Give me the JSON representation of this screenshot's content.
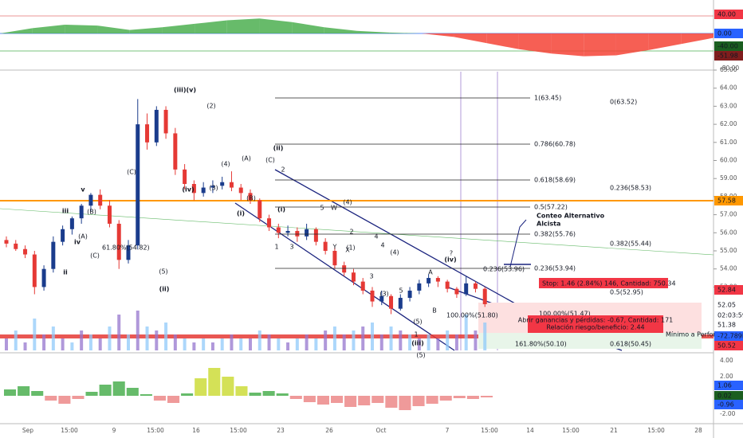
{
  "osc_pane": {
    "tags": [
      "40.00",
      "0.00",
      "-40.00",
      "-51.98"
    ],
    "axis": [
      "-80.00"
    ],
    "values": [
      0,
      12,
      20,
      18,
      8,
      14,
      22,
      30,
      34,
      26,
      14,
      6,
      2,
      0,
      -8,
      -22,
      -36,
      -46,
      -52,
      -50,
      -38,
      -24,
      -10
    ]
  },
  "price_pane": {
    "axis": [
      "65.00",
      "64.00",
      "63.00",
      "62.00",
      "61.00",
      "60.00",
      "59.00",
      "58.00",
      "57.00",
      "56.00",
      "55.00",
      "54.00",
      "53.00"
    ],
    "candles": [
      [
        55.6,
        55.8,
        55.2,
        55.4
      ],
      [
        55.4,
        55.6,
        55.0,
        55.1
      ],
      [
        55.1,
        55.3,
        54.6,
        54.8
      ],
      [
        54.8,
        55.0,
        52.6,
        53.0
      ],
      [
        53.0,
        54.2,
        52.8,
        54.0
      ],
      [
        54.0,
        55.8,
        53.8,
        55.5
      ],
      [
        55.5,
        56.4,
        55.3,
        56.2
      ],
      [
        56.2,
        56.9,
        55.9,
        56.8
      ],
      [
        56.8,
        57.6,
        56.5,
        57.5
      ],
      [
        57.5,
        58.2,
        57.2,
        58.1
      ],
      [
        58.1,
        58.4,
        57.3,
        57.5
      ],
      [
        57.5,
        57.8,
        56.3,
        56.5
      ],
      [
        56.5,
        56.7,
        54.0,
        54.5
      ],
      [
        54.5,
        55.6,
        54.3,
        55.3
      ],
      [
        55.3,
        63.4,
        55.1,
        62.0
      ],
      [
        62.0,
        62.6,
        60.6,
        61.0
      ],
      [
        61.0,
        63.0,
        60.8,
        62.8
      ],
      [
        62.8,
        63.0,
        61.2,
        61.5
      ],
      [
        61.5,
        61.8,
        59.2,
        59.5
      ],
      [
        59.5,
        59.8,
        58.4,
        58.7
      ],
      [
        58.7,
        58.9,
        57.8,
        58.2
      ],
      [
        58.2,
        58.8,
        58.0,
        58.5
      ],
      [
        58.5,
        58.9,
        58.2,
        58.6
      ],
      [
        58.6,
        59.1,
        58.4,
        58.8
      ],
      [
        58.8,
        59.4,
        58.3,
        58.5
      ],
      [
        58.5,
        58.7,
        57.8,
        58.2
      ],
      [
        58.2,
        58.4,
        57.6,
        57.8
      ],
      [
        57.8,
        57.9,
        56.6,
        56.8
      ],
      [
        56.8,
        57.0,
        56.1,
        56.3
      ],
      [
        56.3,
        56.5,
        55.7,
        56.0
      ],
      [
        56.0,
        56.4,
        55.8,
        56.1
      ],
      [
        56.1,
        56.3,
        55.5,
        55.8
      ],
      [
        55.8,
        56.5,
        55.6,
        56.2
      ],
      [
        56.2,
        56.3,
        55.3,
        55.5
      ],
      [
        55.5,
        55.7,
        54.8,
        55.0
      ],
      [
        55.0,
        55.2,
        54.0,
        54.2
      ],
      [
        54.2,
        54.4,
        53.6,
        53.8
      ],
      [
        53.8,
        54.0,
        53.1,
        53.3
      ],
      [
        53.3,
        53.5,
        52.6,
        52.8
      ],
      [
        52.8,
        53.0,
        51.9,
        52.2
      ],
      [
        52.2,
        52.8,
        52.0,
        52.5
      ],
      [
        52.5,
        52.6,
        51.5,
        51.8
      ],
      [
        51.8,
        52.6,
        51.7,
        52.4
      ],
      [
        52.4,
        53.0,
        52.2,
        52.8
      ],
      [
        52.8,
        53.4,
        52.6,
        53.2
      ],
      [
        53.2,
        53.7,
        53.0,
        53.5
      ],
      [
        53.5,
        53.6,
        53.0,
        53.3
      ],
      [
        53.3,
        53.4,
        52.7,
        52.9
      ],
      [
        52.9,
        53.0,
        52.4,
        52.6
      ],
      [
        52.6,
        53.6,
        52.5,
        53.2
      ],
      [
        53.2,
        53.3,
        52.7,
        52.9
      ],
      [
        52.9,
        53.0,
        51.9,
        52.05
      ]
    ],
    "volume": [
      3,
      5,
      2,
      8,
      4,
      6,
      3,
      2,
      5,
      4,
      3,
      6,
      9,
      4,
      10,
      6,
      5,
      7,
      4,
      3,
      2,
      3,
      2,
      3,
      4,
      3,
      3,
      5,
      4,
      3,
      2,
      3,
      4,
      3,
      5,
      6,
      4,
      5,
      6,
      7,
      4,
      6,
      5,
      4,
      3,
      4,
      3,
      5,
      4,
      9,
      5,
      7
    ],
    "fib": [
      "1(63.45)",
      "0.786(60.78)",
      "0.618(58.69)",
      "0.5(57.22)",
      "0.382(55.76)",
      "0.236(53.94)"
    ],
    "fib_extra": [
      "0(63.52)",
      "0.236(58.53)",
      "0.382(55.44)",
      "0.5(52.95)",
      "0.618(50.45)",
      "100.00%(51.47)",
      "100.00%(51.80)",
      "161.80%(50.10)",
      "61.80%(54.82)",
      "0.236(53.96)"
    ],
    "waves": [
      "(iii)(v)",
      "(2)",
      "(i)",
      "v",
      "iii",
      "iv",
      "ii",
      "(C)",
      "(B)",
      "(A)",
      "(C)",
      "(5)",
      "(ii)",
      "(iv)",
      "(3)",
      "(4)",
      "(A)",
      "(C)",
      "(B)",
      "(ii)",
      "(i)",
      "2",
      "1",
      "3",
      "4",
      "5",
      "W",
      "Y",
      "X",
      "(4)",
      "(3)",
      "3",
      "4",
      "(4)",
      "5",
      "(5)",
      "(iii)",
      "A",
      "B",
      "?",
      "(iv)",
      "1",
      "2",
      "(1)",
      "(5)"
    ],
    "alt_count": [
      "Conteo Alternativo",
      "Alcista"
    ],
    "stop_box": "Stop: 1.46 (2.84%) 146, Cantidad: 750.34",
    "pl_box": [
      "Abrir ganancias y pérdidas: -0.67, Cantidad: 171",
      "Relación riesgo/beneficio: 2.44"
    ],
    "min_label": "Mínimo a Perforar",
    "tags": [
      "57.58",
      "52.84",
      "52.05",
      "02:03:59",
      "51.38",
      "-72.789K",
      "50.52"
    ]
  },
  "macd_pane": {
    "axis": [
      "4.00",
      "2.00",
      "-2.00"
    ],
    "tags": [
      "1.06",
      "0.02",
      "-0.96"
    ],
    "values": [
      0.8,
      1.2,
      0.6,
      -0.6,
      -1.0,
      -0.4,
      0.5,
      1.4,
      1.8,
      1.0,
      0.2,
      -0.6,
      -0.9,
      0.3,
      2.2,
      3.5,
      2.4,
      1.2,
      0.4,
      0.6,
      0.3,
      -0.4,
      -0.8,
      -1.1,
      -0.9,
      -1.4,
      -1.2,
      -0.9,
      -1.5,
      -1.8,
      -1.3,
      -1.0,
      -0.6,
      -0.3,
      -0.4,
      -0.2
    ]
  },
  "time_axis": [
    "Sep",
    "15:00",
    "9",
    "15:00",
    "16",
    "15:00",
    "23",
    "26",
    "Oct",
    "7",
    "15:00",
    "14",
    "15:00",
    "21",
    "15:00",
    "28"
  ]
}
